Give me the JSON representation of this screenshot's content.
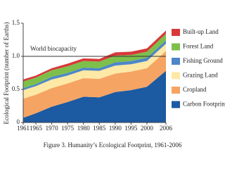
{
  "chart_data": {
    "type": "stacked_area",
    "y_label": "Ecological Footprint (number of Earths)",
    "caption": "Figure 3. Humanity’s Ecological Footprint, 1961-2006",
    "x": [
      1961,
      1965,
      1970,
      1975,
      1980,
      1985,
      1990,
      1995,
      2000,
      2006
    ],
    "xlim": [
      1961,
      2006
    ],
    "xticks": [
      1961,
      1965,
      1970,
      1975,
      1980,
      1985,
      1990,
      1995,
      2000,
      2006
    ],
    "ylim": [
      0,
      1.5
    ],
    "yticks": [
      0,
      0.5,
      {
        "value": 1,
        "label": "1.0"
      },
      1.5
    ],
    "reference_line": {
      "value": 1,
      "label": "World biocapacity",
      "color": "#333333"
    },
    "series": [
      {
        "name": "Carbon Footprint",
        "color": "#1c5aa2",
        "values": [
          0.07,
          0.14,
          0.24,
          0.31,
          0.39,
          0.38,
          0.46,
          0.49,
          0.54,
          0.78
        ]
      },
      {
        "name": "Cropland",
        "color": "#f5a463",
        "values": [
          0.29,
          0.28,
          0.28,
          0.28,
          0.28,
          0.28,
          0.28,
          0.28,
          0.28,
          0.3
        ]
      },
      {
        "name": "Grazing Land",
        "color": "#fde8a6",
        "values": [
          0.13,
          0.13,
          0.13,
          0.12,
          0.12,
          0.12,
          0.12,
          0.11,
          0.11,
          0.11
        ]
      },
      {
        "name": "Fishing Ground",
        "color": "#4d87c7",
        "values": [
          0.03,
          0.03,
          0.04,
          0.04,
          0.04,
          0.04,
          0.05,
          0.05,
          0.05,
          0.05
        ]
      },
      {
        "name": "Forest Land",
        "color": "#7dbf4a",
        "values": [
          0.1,
          0.1,
          0.1,
          0.1,
          0.1,
          0.1,
          0.1,
          0.09,
          0.09,
          0.1
        ]
      },
      {
        "name": "Built-up Land",
        "color": "#d8383a",
        "values": [
          0.03,
          0.03,
          0.03,
          0.04,
          0.04,
          0.04,
          0.05,
          0.05,
          0.05,
          0.05
        ]
      }
    ]
  }
}
